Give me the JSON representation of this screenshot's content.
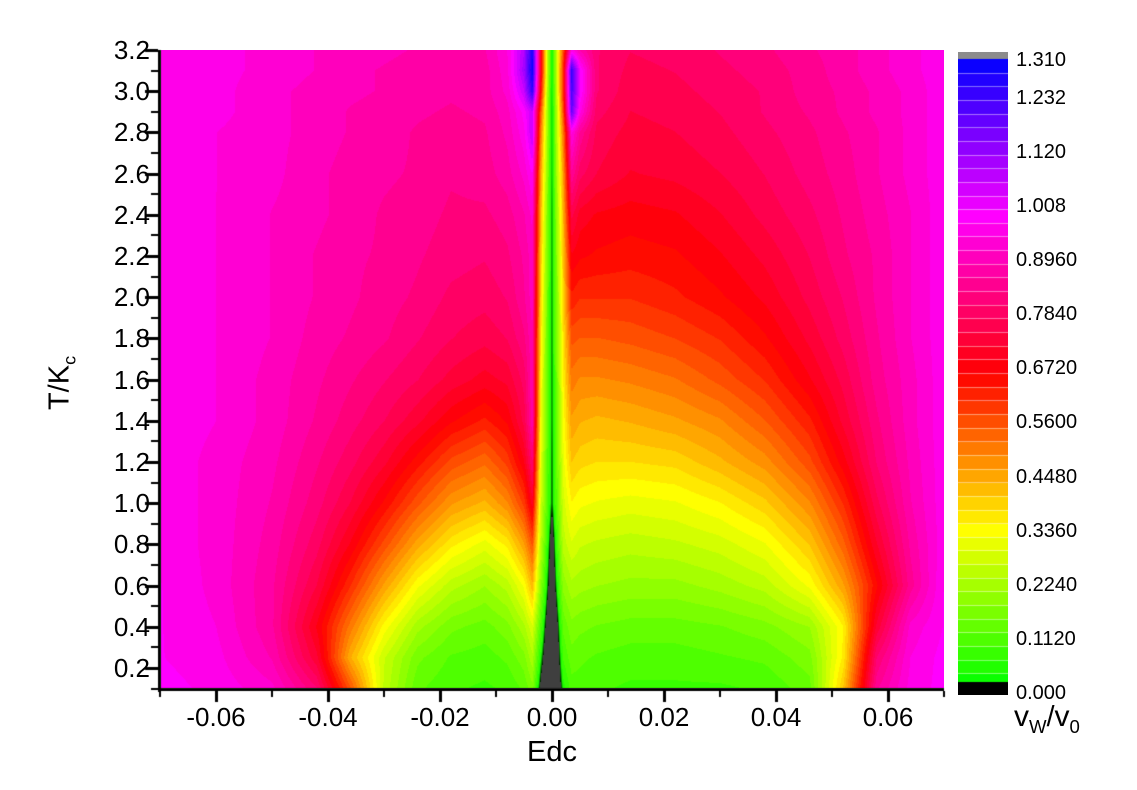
{
  "figure": {
    "background": "#ffffff"
  },
  "chart_data": {
    "type": "heatmap",
    "title": "",
    "xlabel": "Edc",
    "ylabel": {
      "base": "T/K",
      "sub": "c"
    },
    "x_range": [
      -0.07,
      0.07
    ],
    "t_range": [
      0.103,
      3.2
    ],
    "grid": false,
    "x_tick_labels": [
      "-0.06",
      "-0.04",
      "-0.02",
      "0.00",
      "0.02",
      "0.04",
      "0.06"
    ],
    "x_tick_values": [
      -0.06,
      -0.04,
      -0.02,
      0,
      0.02,
      0.04,
      0.06
    ],
    "x_minor_ticks": [
      -0.07,
      -0.05,
      -0.03,
      -0.01,
      0.01,
      0.03,
      0.05,
      0.07
    ],
    "y_tick_labels": [
      "3.2",
      "3.0",
      "2.8",
      "2.6",
      "2.4",
      "2.2",
      "2.0",
      "1.8",
      "1.6",
      "1.4",
      "1.2",
      "1.0",
      "0.8",
      "0.6",
      "0.4",
      "0.2"
    ],
    "y_tick_values": [
      3.2,
      3.0,
      2.8,
      2.6,
      2.4,
      2.2,
      2.0,
      1.8,
      1.6,
      1.4,
      1.2,
      1.0,
      0.8,
      0.6,
      0.4,
      0.2
    ],
    "y_minor_ticks": [
      3.1,
      2.9,
      2.7,
      2.5,
      2.3,
      2.1,
      1.9,
      1.7,
      1.5,
      1.3,
      1.1,
      0.9,
      0.7,
      0.5,
      0.3,
      0.1
    ],
    "colorbar": {
      "label": {
        "p1": "v",
        "s1": "W",
        "slash": "/",
        "p2": "v",
        "s2": "0"
      },
      "tick_labels": [
        "1.310",
        "1.232",
        "1.120",
        "1.008",
        "0.8960",
        "0.7840",
        "0.6720",
        "0.5600",
        "0.4480",
        "0.3360",
        "0.2240",
        "0.1120",
        "0.000"
      ],
      "tick_values": [
        1.31,
        1.232,
        1.12,
        1.008,
        0.896,
        0.784,
        0.672,
        0.56,
        0.448,
        0.336,
        0.224,
        0.112,
        0.0
      ],
      "vmin": 0.0,
      "vmax": 1.31,
      "bands": 46,
      "legend_position": "right",
      "over_color": "#8C8C8C",
      "under_color": "#3F3F3F",
      "zero_color": "#000000"
    },
    "grid_x": [
      -0.07,
      -0.06,
      -0.05,
      -0.042,
      -0.036,
      -0.03,
      -0.024,
      -0.018,
      -0.012,
      -0.008,
      -0.005,
      -0.0035,
      -0.002,
      -0.0008,
      0,
      0.0008,
      0.002,
      0.0035,
      0.005,
      0.008,
      0.014,
      0.022,
      0.03,
      0.038,
      0.046,
      0.052,
      0.058,
      0.064,
      0.07
    ],
    "grid_t": [
      3.2,
      3.1,
      3.0,
      2.9,
      2.8,
      2.6,
      2.4,
      2.2,
      2.0,
      1.8,
      1.6,
      1.4,
      1.2,
      1.0,
      0.8,
      0.6,
      0.4,
      0.25,
      0.1
    ],
    "values": [
      [
        0.96,
        0.95,
        0.93,
        0.91,
        0.9,
        0.89,
        0.88,
        0.87,
        0.88,
        0.94,
        1.08,
        1.28,
        0.7,
        0.25,
        0.015,
        0.25,
        0.55,
        0.95,
        0.88,
        0.8,
        0.77,
        0.78,
        0.8,
        0.82,
        0.85,
        0.87,
        0.9,
        0.93,
        0.96
      ],
      [
        0.96,
        0.95,
        0.93,
        0.91,
        0.89,
        0.88,
        0.87,
        0.86,
        0.87,
        0.93,
        1.1,
        1.3,
        0.7,
        0.25,
        0.015,
        0.25,
        0.6,
        1.25,
        1.0,
        0.8,
        0.76,
        0.77,
        0.79,
        0.81,
        0.84,
        0.87,
        0.9,
        0.93,
        0.96
      ],
      [
        0.96,
        0.95,
        0.92,
        0.9,
        0.89,
        0.88,
        0.87,
        0.86,
        0.87,
        0.92,
        1.05,
        1.25,
        0.65,
        0.22,
        0.015,
        0.24,
        0.6,
        1.22,
        1.0,
        0.8,
        0.75,
        0.76,
        0.78,
        0.8,
        0.84,
        0.86,
        0.89,
        0.92,
        0.96
      ],
      [
        0.96,
        0.95,
        0.92,
        0.9,
        0.88,
        0.87,
        0.86,
        0.85,
        0.86,
        0.9,
        0.98,
        1.05,
        0.55,
        0.2,
        0.015,
        0.22,
        0.55,
        1.18,
        0.95,
        0.78,
        0.74,
        0.75,
        0.77,
        0.8,
        0.83,
        0.86,
        0.89,
        0.92,
        0.96
      ],
      [
        0.96,
        0.94,
        0.92,
        0.9,
        0.88,
        0.87,
        0.85,
        0.84,
        0.85,
        0.89,
        0.96,
        1.06,
        0.5,
        0.2,
        0.015,
        0.22,
        0.5,
        0.95,
        0.85,
        0.76,
        0.73,
        0.74,
        0.76,
        0.79,
        0.82,
        0.85,
        0.88,
        0.92,
        0.96
      ],
      [
        0.96,
        0.94,
        0.92,
        0.89,
        0.87,
        0.86,
        0.85,
        0.83,
        0.84,
        0.87,
        0.92,
        0.97,
        0.45,
        0.18,
        0.015,
        0.2,
        0.45,
        0.85,
        0.78,
        0.74,
        0.71,
        0.72,
        0.74,
        0.77,
        0.81,
        0.84,
        0.88,
        0.92,
        0.96
      ],
      [
        0.96,
        0.94,
        0.91,
        0.89,
        0.87,
        0.85,
        0.84,
        0.82,
        0.82,
        0.84,
        0.88,
        0.92,
        0.42,
        0.16,
        0.012,
        0.18,
        0.42,
        0.75,
        0.7,
        0.68,
        0.67,
        0.68,
        0.71,
        0.75,
        0.79,
        0.83,
        0.87,
        0.91,
        0.96
      ],
      [
        0.96,
        0.94,
        0.91,
        0.88,
        0.86,
        0.85,
        0.83,
        0.81,
        0.8,
        0.82,
        0.86,
        0.9,
        0.4,
        0.15,
        0.012,
        0.17,
        0.4,
        0.68,
        0.66,
        0.65,
        0.64,
        0.65,
        0.68,
        0.72,
        0.77,
        0.82,
        0.86,
        0.91,
        0.96
      ],
      [
        0.96,
        0.94,
        0.91,
        0.88,
        0.86,
        0.84,
        0.82,
        0.79,
        0.78,
        0.8,
        0.85,
        0.9,
        0.38,
        0.14,
        0.012,
        0.16,
        0.38,
        0.62,
        0.6,
        0.6,
        0.6,
        0.62,
        0.65,
        0.69,
        0.75,
        0.8,
        0.86,
        0.91,
        0.96
      ],
      [
        0.96,
        0.94,
        0.91,
        0.87,
        0.85,
        0.83,
        0.8,
        0.77,
        0.75,
        0.77,
        0.82,
        0.88,
        0.36,
        0.13,
        0.012,
        0.15,
        0.36,
        0.55,
        0.54,
        0.54,
        0.55,
        0.57,
        0.6,
        0.65,
        0.72,
        0.78,
        0.85,
        0.91,
        0.96
      ],
      [
        0.96,
        0.94,
        0.9,
        0.86,
        0.83,
        0.8,
        0.77,
        0.73,
        0.7,
        0.72,
        0.78,
        0.88,
        0.34,
        0.12,
        0.012,
        0.14,
        0.34,
        0.5,
        0.48,
        0.48,
        0.49,
        0.51,
        0.55,
        0.6,
        0.68,
        0.75,
        0.84,
        0.9,
        0.96
      ],
      [
        0.96,
        0.94,
        0.9,
        0.85,
        0.81,
        0.77,
        0.72,
        0.66,
        0.62,
        0.66,
        0.75,
        0.88,
        0.32,
        0.12,
        0.012,
        0.13,
        0.32,
        0.45,
        0.43,
        0.42,
        0.43,
        0.45,
        0.48,
        0.54,
        0.62,
        0.72,
        0.82,
        0.9,
        0.96
      ],
      [
        0.96,
        0.93,
        0.89,
        0.83,
        0.78,
        0.72,
        0.64,
        0.56,
        0.52,
        0.58,
        0.68,
        0.8,
        0.3,
        0.11,
        0.008,
        0.12,
        0.3,
        0.4,
        0.38,
        0.37,
        0.37,
        0.38,
        0.42,
        0.47,
        0.56,
        0.67,
        0.8,
        0.89,
        0.96
      ],
      [
        0.96,
        0.93,
        0.88,
        0.81,
        0.74,
        0.65,
        0.55,
        0.46,
        0.42,
        0.48,
        0.58,
        0.7,
        0.27,
        0.1,
        0.008,
        0.11,
        0.27,
        0.34,
        0.32,
        0.31,
        0.3,
        0.31,
        0.34,
        0.39,
        0.48,
        0.6,
        0.76,
        0.88,
        0.96
      ],
      [
        0.96,
        0.93,
        0.87,
        0.78,
        0.68,
        0.56,
        0.44,
        0.35,
        0.3,
        0.35,
        0.45,
        0.55,
        0.24,
        0.06,
        -0.05,
        0.07,
        0.24,
        0.28,
        0.26,
        0.25,
        0.24,
        0.25,
        0.27,
        0.31,
        0.4,
        0.53,
        0.71,
        0.86,
        0.96
      ],
      [
        0.97,
        0.93,
        0.86,
        0.74,
        0.6,
        0.45,
        0.32,
        0.24,
        0.2,
        0.24,
        0.32,
        0.42,
        0.18,
        0.02,
        -0.07,
        0.03,
        0.18,
        0.22,
        0.21,
        0.2,
        0.19,
        0.19,
        0.21,
        0.24,
        0.32,
        0.45,
        0.65,
        0.84,
        0.97
      ],
      [
        0.97,
        0.94,
        0.86,
        0.68,
        0.5,
        0.33,
        0.21,
        0.15,
        0.13,
        0.16,
        0.22,
        0.28,
        0.1,
        -0.04,
        -0.09,
        -0.03,
        0.12,
        0.16,
        0.15,
        0.14,
        0.13,
        0.13,
        0.14,
        0.16,
        0.2,
        0.34,
        0.72,
        0.92,
        0.97
      ],
      [
        0.97,
        0.95,
        0.88,
        0.72,
        0.43,
        0.26,
        0.15,
        0.11,
        0.1,
        0.12,
        0.16,
        0.22,
        0.04,
        -0.07,
        -0.11,
        -0.06,
        0.09,
        0.13,
        0.12,
        0.11,
        0.1,
        0.1,
        0.11,
        0.12,
        0.16,
        0.35,
        0.8,
        0.94,
        0.98
      ],
      [
        0.98,
        0.96,
        0.92,
        0.8,
        0.55,
        0.25,
        0.12,
        0.09,
        0.08,
        0.09,
        0.12,
        0.16,
        -0.02,
        -0.1,
        -0.13,
        -0.08,
        0.04,
        0.1,
        0.1,
        0.09,
        0.08,
        0.08,
        0.08,
        0.09,
        0.13,
        0.4,
        0.85,
        0.95,
        0.98
      ]
    ]
  }
}
